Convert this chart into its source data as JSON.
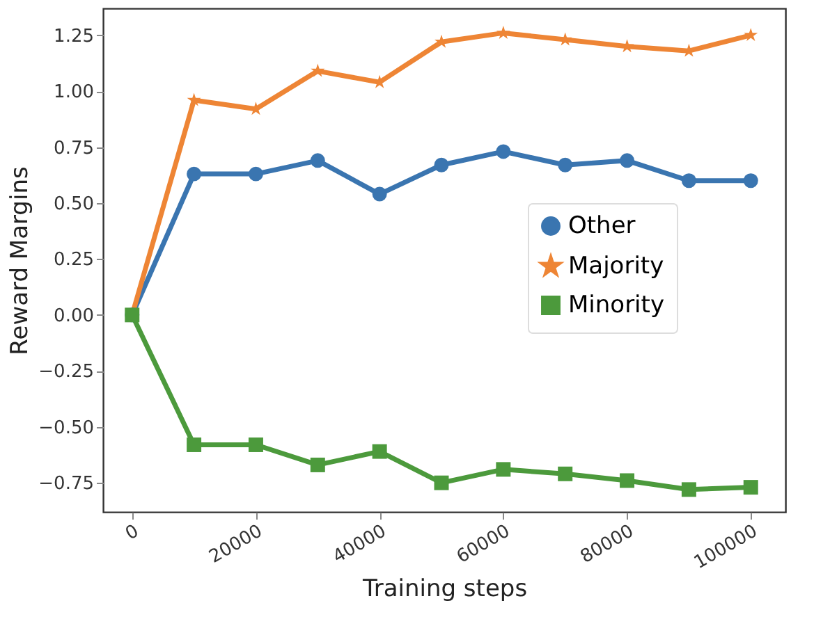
{
  "chart_data": {
    "type": "line",
    "xlabel": "Training steps",
    "ylabel": "Reward Margins",
    "x": [
      0,
      10000,
      20000,
      30000,
      40000,
      50000,
      60000,
      70000,
      80000,
      90000,
      100000
    ],
    "series": [
      {
        "name": "Other",
        "color": "#3a75b0",
        "marker": "circle",
        "values": [
          0,
          0.63,
          0.63,
          0.69,
          0.54,
          0.67,
          0.73,
          0.67,
          0.69,
          0.6,
          0.6
        ]
      },
      {
        "name": "Majority",
        "color": "#ee8535",
        "marker": "star",
        "values": [
          0,
          0.96,
          0.92,
          1.09,
          1.04,
          1.22,
          1.26,
          1.23,
          1.2,
          1.18,
          1.25
        ]
      },
      {
        "name": "Minority",
        "color": "#4c9a3c",
        "marker": "square",
        "values": [
          0,
          -0.58,
          -0.58,
          -0.67,
          -0.61,
          -0.75,
          -0.69,
          -0.71,
          -0.74,
          -0.78,
          -0.77
        ]
      }
    ],
    "xlim": [
      -4700,
      105600
    ],
    "xticks": [
      0,
      {
        "value": 20000,
        "label": "20000"
      },
      {
        "value": 40000,
        "label": "40000"
      },
      {
        "value": 60000,
        "label": "60000"
      },
      {
        "value": 80000,
        "label": "80000"
      },
      {
        "value": 100000,
        "label": "100000"
      }
    ],
    "ylim": [
      -0.88,
      1.37
    ],
    "yticks": [
      {
        "value": -0.75,
        "label": "−0.75"
      },
      {
        "value": -0.5,
        "label": "−0.50"
      },
      {
        "value": -0.25,
        "label": "−0.25"
      },
      {
        "value": 0,
        "label": "0.00"
      },
      {
        "value": 0.25,
        "label": "0.25"
      },
      {
        "value": 0.5,
        "label": "0.50"
      },
      {
        "value": 0.75,
        "label": "0.75"
      },
      {
        "value": 1,
        "label": "1.00"
      },
      {
        "value": 1.25,
        "label": "1.25"
      }
    ],
    "grid": false,
    "legend": "right",
    "line_style": "solid"
  }
}
